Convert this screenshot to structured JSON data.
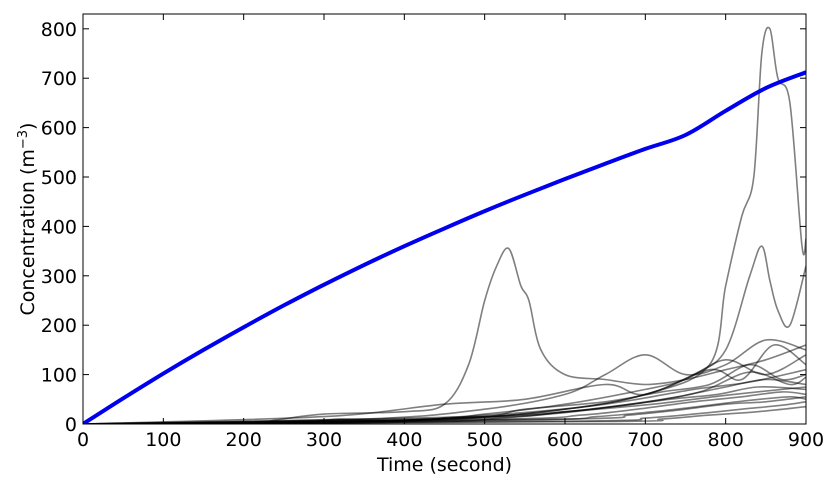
{
  "chart_data": {
    "type": "line",
    "title": "",
    "xlabel": "Time (second)",
    "ylabel_main": "Concentration (m",
    "ylabel_sup": "−3",
    "ylabel_close": ")",
    "xlim": [
      0,
      900
    ],
    "ylim": [
      0,
      830
    ],
    "xticks": [
      "0",
      "100",
      "200",
      "300",
      "400",
      "500",
      "600",
      "700",
      "800",
      "900"
    ],
    "yticks": [
      "0",
      "100",
      "200",
      "300",
      "400",
      "500",
      "600",
      "700",
      "800"
    ],
    "grid": false,
    "legend": "none",
    "series_colors": {
      "mean": "#0000ee",
      "realizations": "#000000"
    },
    "series": [
      {
        "role": "mean",
        "x": [
          0,
          50,
          100,
          150,
          200,
          250,
          300,
          350,
          400,
          450,
          500,
          550,
          600,
          650,
          700,
          750,
          800,
          850,
          900
        ],
        "y": [
          0,
          52,
          102,
          150,
          196,
          240,
          282,
          322,
          360,
          396,
          431,
          464,
          496,
          527,
          557,
          585,
          634,
          680,
          712
        ]
      },
      {
        "role": "realization",
        "x": [
          0,
          200,
          240,
          300,
          400,
          450,
          480,
          500,
          515,
          530,
          545,
          555,
          570,
          600,
          650,
          700,
          750,
          800,
          850,
          900
        ],
        "y": [
          0,
          0,
          8,
          20,
          25,
          40,
          120,
          250,
          320,
          355,
          280,
          250,
          150,
          100,
          90,
          80,
          90,
          110,
          130,
          160
        ]
      },
      {
        "role": "realization",
        "x": [
          0,
          300,
          500,
          600,
          700,
          780,
          800,
          820,
          835,
          845,
          855,
          865,
          880,
          895,
          900
        ],
        "y": [
          0,
          3,
          15,
          30,
          60,
          120,
          280,
          420,
          500,
          750,
          800,
          700,
          650,
          360,
          375
        ]
      },
      {
        "role": "realization",
        "x": [
          0,
          400,
          600,
          700,
          760,
          800,
          830,
          845,
          855,
          865,
          880,
          900
        ],
        "y": [
          0,
          5,
          30,
          60,
          100,
          150,
          300,
          360,
          290,
          230,
          200,
          320
        ]
      },
      {
        "role": "realization",
        "x": [
          0,
          350,
          500,
          600,
          650,
          700,
          750,
          800,
          850,
          900
        ],
        "y": [
          0,
          10,
          30,
          60,
          100,
          140,
          100,
          120,
          170,
          150
        ]
      },
      {
        "role": "realization",
        "x": [
          0,
          300,
          450,
          550,
          650,
          700,
          780,
          820,
          860,
          900
        ],
        "y": [
          0,
          15,
          40,
          50,
          80,
          60,
          110,
          90,
          160,
          120
        ]
      },
      {
        "role": "realization",
        "x": [
          0,
          400,
          500,
          600,
          700,
          750,
          800,
          850,
          900
        ],
        "y": [
          0,
          8,
          20,
          40,
          70,
          90,
          130,
          100,
          140
        ]
      },
      {
        "role": "realization",
        "x": [
          0,
          450,
          550,
          650,
          720,
          780,
          830,
          870,
          900
        ],
        "y": [
          0,
          10,
          30,
          45,
          65,
          80,
          120,
          90,
          100
        ]
      },
      {
        "role": "realization",
        "x": [
          0,
          500,
          600,
          680,
          740,
          800,
          850,
          900
        ],
        "y": [
          0,
          15,
          25,
          40,
          55,
          75,
          90,
          80
        ]
      },
      {
        "role": "realization",
        "x": [
          0,
          480,
          580,
          660,
          730,
          790,
          840,
          900
        ],
        "y": [
          0,
          12,
          20,
          35,
          50,
          60,
          75,
          70
        ]
      },
      {
        "role": "realization",
        "x": [
          0,
          520,
          620,
          690,
          760,
          820,
          870,
          900
        ],
        "y": [
          0,
          10,
          18,
          30,
          45,
          55,
          65,
          60
        ]
      },
      {
        "role": "realization",
        "x": [
          0,
          550,
          640,
          710,
          780,
          830,
          880,
          900
        ],
        "y": [
          0,
          8,
          15,
          25,
          38,
          48,
          55,
          50
        ]
      },
      {
        "role": "realization",
        "x": [
          0,
          600,
          680,
          740,
          800,
          850,
          900
        ],
        "y": [
          0,
          10,
          18,
          28,
          40,
          45,
          55
        ]
      },
      {
        "role": "realization",
        "x": [
          0,
          620,
          700,
          760,
          820,
          870,
          900
        ],
        "y": [
          0,
          6,
          12,
          20,
          30,
          38,
          45
        ]
      },
      {
        "role": "realization",
        "x": [
          0,
          650,
          720,
          780,
          840,
          900
        ],
        "y": [
          0,
          5,
          10,
          18,
          25,
          35
        ]
      },
      {
        "role": "realization",
        "x": [
          0,
          380,
          460,
          540,
          620,
          690,
          760,
          830,
          900
        ],
        "y": [
          0,
          6,
          14,
          22,
          34,
          50,
          70,
          85,
          110
        ]
      },
      {
        "role": "realization",
        "x": [
          0,
          420,
          520,
          610,
          700,
          770,
          830,
          880,
          900
        ],
        "y": [
          0,
          4,
          12,
          26,
          44,
          66,
          105,
          80,
          95
        ]
      },
      {
        "role": "realization",
        "x": [
          0,
          260,
          320,
          380,
          460,
          540,
          640,
          720,
          800,
          900
        ],
        "y": [
          0,
          4,
          10,
          6,
          12,
          18,
          30,
          42,
          58,
          75
        ]
      }
    ]
  }
}
